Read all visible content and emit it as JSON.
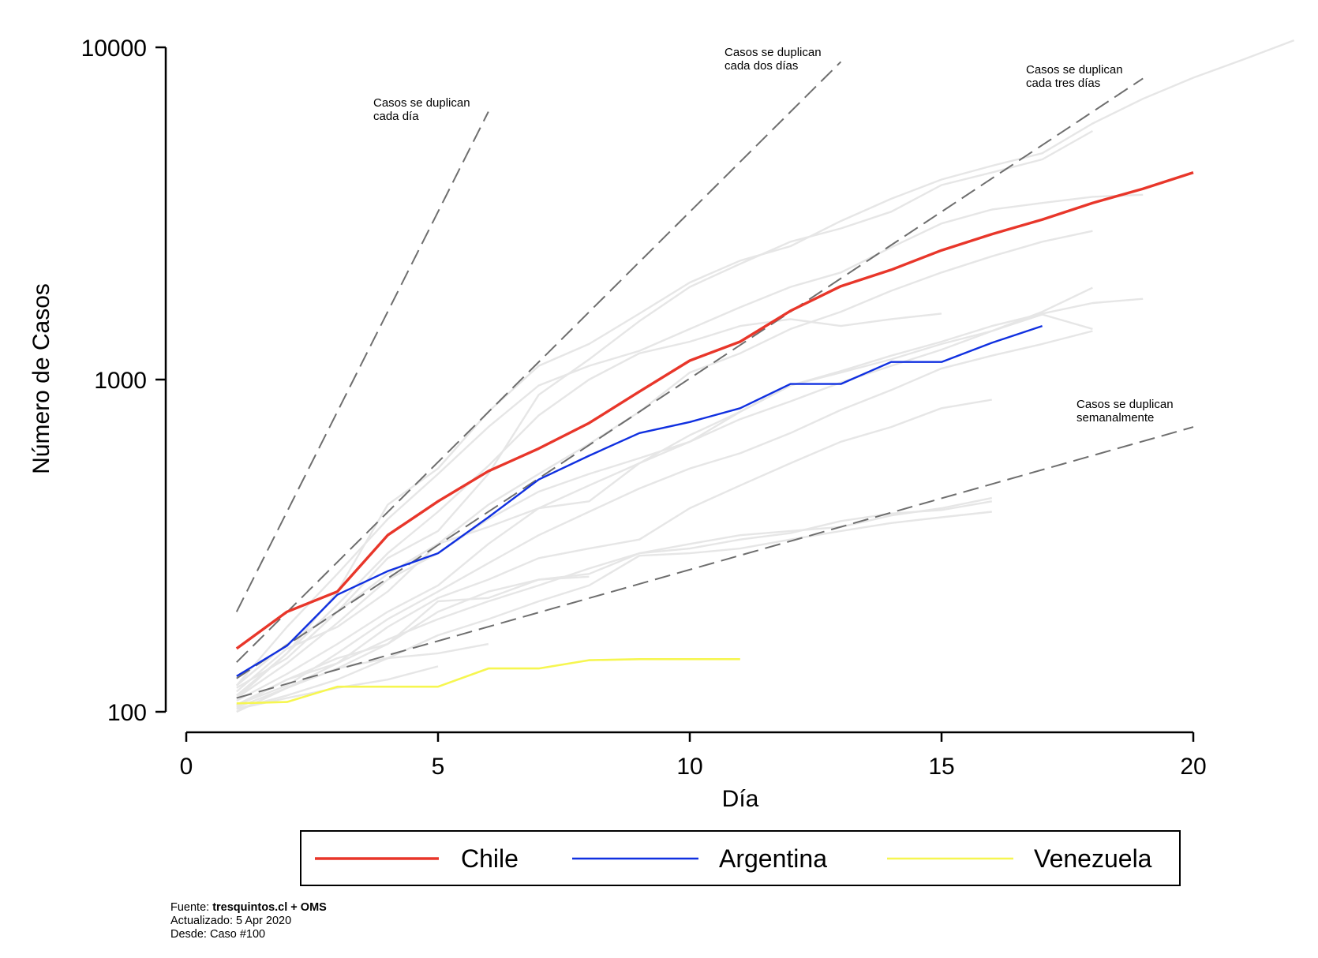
{
  "chart_data": {
    "type": "line",
    "xlabel": "Día",
    "ylabel": "Número de Casos",
    "y_scale": "log",
    "xlim": [
      0,
      20
    ],
    "ylim": [
      100,
      10000
    ],
    "x_ticks": [
      0,
      5,
      10,
      15,
      20
    ],
    "y_ticks": [
      100,
      1000,
      10000
    ],
    "series": [
      {
        "name": "Chile",
        "color": "#e8362a",
        "x": [
          1,
          2,
          3,
          4,
          5,
          6,
          7,
          8,
          9,
          10,
          11,
          12,
          13,
          14,
          15,
          16,
          17,
          18,
          19,
          20
        ],
        "values": [
          155,
          200,
          230,
          340,
          430,
          530,
          620,
          740,
          920,
          1140,
          1300,
          1610,
          1910,
          2140,
          2450,
          2740,
          3030,
          3400,
          3750,
          4200
        ]
      },
      {
        "name": "Argentina",
        "color": "#1030e0",
        "x": [
          1,
          2,
          3,
          4,
          5,
          6,
          7,
          8,
          9,
          10,
          11,
          12,
          13,
          14,
          15,
          16,
          17
        ],
        "values": [
          128,
          158,
          225,
          265,
          300,
          385,
          500,
          590,
          690,
          745,
          820,
          970,
          970,
          1130,
          1130,
          1290,
          1450
        ]
      },
      {
        "name": "Venezuela",
        "color": "#f6f650",
        "x": [
          1,
          2,
          3,
          4,
          5,
          6,
          7,
          8,
          9,
          10,
          11
        ],
        "values": [
          106,
          107,
          119,
          119,
          119,
          135,
          135,
          143,
          144,
          144,
          144
        ]
      }
    ],
    "background_series": [
      {
        "x": [
          1,
          2,
          3,
          4,
          5,
          6,
          7,
          8,
          9,
          10,
          11,
          12,
          13,
          14,
          15,
          16,
          17,
          18,
          19,
          20,
          21,
          22
        ],
        "values": [
          110,
          150,
          230,
          420,
          540,
          800,
          1100,
          1280,
          1580,
          1960,
          2280,
          2520,
          3000,
          3500,
          4000,
          4400,
          4800,
          5900,
          7000,
          8100,
          9200,
          10500
        ]
      },
      {
        "x": [
          1,
          2,
          3,
          4,
          5,
          6,
          7,
          8,
          9,
          10,
          11,
          12,
          13,
          14,
          15,
          16,
          17,
          18,
          19
        ],
        "values": [
          120,
          180,
          260,
          380,
          520,
          720,
          960,
          1100,
          1220,
          1420,
          1650,
          1900,
          2100,
          2500,
          2950,
          3250,
          3400,
          3550,
          3600
        ]
      },
      {
        "x": [
          1,
          2,
          3,
          4,
          5,
          6,
          7,
          8,
          9,
          10,
          11,
          12,
          13,
          14,
          15,
          16,
          17,
          18
        ],
        "values": [
          118,
          145,
          200,
          290,
          350,
          520,
          900,
          1150,
          1500,
          1900,
          2230,
          2600,
          2850,
          3200,
          3850,
          4200,
          4600,
          5600
        ]
      },
      {
        "x": [
          1,
          2,
          3,
          4,
          5,
          6,
          7,
          8,
          9,
          10,
          11,
          12,
          13,
          14,
          15
        ],
        "values": [
          112,
          150,
          210,
          300,
          400,
          550,
          780,
          1000,
          1200,
          1300,
          1450,
          1520,
          1450,
          1520,
          1580
        ]
      },
      {
        "x": [
          1,
          2,
          3,
          4,
          5,
          6,
          7,
          8,
          9,
          10,
          11,
          12,
          13,
          14,
          15,
          16,
          17,
          18
        ],
        "values": [
          120,
          160,
          200,
          260,
          320,
          420,
          520,
          640,
          800,
          1050,
          1200,
          1420,
          1600,
          1850,
          2100,
          2350,
          2600,
          2800
        ]
      },
      {
        "x": [
          1,
          2,
          3,
          4,
          5,
          6,
          7,
          8,
          9,
          10,
          11,
          12,
          13,
          14,
          15,
          16,
          17,
          18,
          19
        ],
        "values": [
          110,
          140,
          185,
          250,
          300,
          380,
          460,
          520,
          580,
          650,
          800,
          960,
          1060,
          1180,
          1300,
          1450,
          1580,
          1700,
          1750
        ]
      },
      {
        "x": [
          1,
          2,
          3,
          4,
          5,
          6,
          7,
          8,
          9,
          10,
          11,
          12,
          13,
          14,
          15,
          16,
          17,
          18
        ],
        "values": [
          115,
          155,
          180,
          230,
          320,
          360,
          410,
          430,
          560,
          680,
          800,
          960,
          1050,
          1150,
          1280,
          1400,
          1600,
          1890
        ]
      },
      {
        "x": [
          1,
          2,
          3,
          4,
          5,
          6,
          7,
          8,
          9,
          10,
          11,
          12,
          13,
          14,
          15,
          16,
          17,
          18
        ],
        "values": [
          108,
          130,
          160,
          200,
          240,
          320,
          410,
          480,
          560,
          650,
          760,
          860,
          980,
          1100,
          1230,
          1400,
          1570,
          1420
        ]
      },
      {
        "x": [
          1,
          2,
          3,
          4,
          5,
          6,
          7,
          8,
          9,
          10,
          11,
          12,
          13,
          14,
          15,
          16,
          17,
          18
        ],
        "values": [
          105,
          120,
          150,
          190,
          230,
          280,
          340,
          400,
          470,
          540,
          600,
          690,
          810,
          930,
          1080,
          1180,
          1280,
          1400
        ]
      },
      {
        "x": [
          1,
          2,
          3,
          4,
          5,
          6,
          7,
          8,
          9,
          10,
          11,
          12,
          13,
          14,
          15,
          16
        ],
        "values": [
          104,
          125,
          140,
          180,
          220,
          250,
          290,
          310,
          330,
          410,
          480,
          560,
          650,
          720,
          820,
          870
        ]
      },
      {
        "x": [
          1,
          2,
          3,
          4,
          5,
          6,
          7,
          8,
          9,
          10,
          11,
          12,
          13,
          14,
          15,
          16
        ],
        "values": [
          103,
          118,
          140,
          165,
          190,
          215,
          240,
          270,
          300,
          320,
          340,
          350,
          360,
          390,
          410,
          440
        ]
      },
      {
        "x": [
          1,
          2,
          3,
          4,
          5,
          6,
          7,
          8,
          9,
          10,
          11,
          12,
          13,
          14,
          15,
          16
        ],
        "values": [
          102,
          112,
          125,
          145,
          170,
          190,
          215,
          240,
          295,
          300,
          310,
          330,
          350,
          370,
          385,
          400
        ]
      },
      {
        "x": [
          1,
          2,
          3,
          4,
          5,
          6,
          7,
          8
        ],
        "values": [
          105,
          125,
          145,
          160,
          215,
          220,
          250,
          255
        ]
      },
      {
        "x": [
          1,
          2,
          3,
          4,
          5,
          6,
          7,
          8,
          9,
          10,
          11,
          12,
          13,
          14,
          15,
          16
        ],
        "values": [
          100,
          118,
          135,
          160,
          200,
          230,
          250,
          260,
          300,
          310,
          330,
          345,
          375,
          395,
          405,
          430
        ]
      },
      {
        "x": [
          1,
          2,
          3,
          4,
          5,
          6
        ],
        "values": [
          100,
          118,
          135,
          145,
          150,
          160
        ]
      },
      {
        "x": [
          1,
          2,
          3,
          4,
          5
        ],
        "values": [
          102,
          110,
          118,
          125,
          137
        ]
      }
    ],
    "reference_lines": [
      {
        "name": "Casos se duplican cada día",
        "x": [
          1,
          6
        ],
        "values": [
          200,
          6400
        ]
      },
      {
        "name": "Casos se duplican cada dos días",
        "x": [
          1,
          13
        ],
        "values": [
          141,
          9050
        ]
      },
      {
        "name": "Casos se duplican cada tres días",
        "x": [
          1,
          19
        ],
        "values": [
          126,
          8060
        ]
      },
      {
        "name": "Casos se duplican semanalmente",
        "x": [
          1,
          20
        ],
        "values": [
          110,
          720
        ]
      }
    ],
    "annotations": [
      {
        "lines": [
          "Casos se duplican",
          "cada día"
        ]
      },
      {
        "lines": [
          "Casos se duplican",
          "cada dos días"
        ]
      },
      {
        "lines": [
          "Casos se duplican",
          "cada tres días"
        ]
      },
      {
        "lines": [
          "Casos se duplican",
          "semanalmente"
        ]
      }
    ],
    "legend": {
      "position": "bottom",
      "entries": [
        "Chile",
        "Argentina",
        "Venezuela"
      ]
    }
  },
  "footer": {
    "source_label": "Fuente: ",
    "source_bold": "tresquintos.cl + OMS",
    "updated": "Actualizado: 5 Apr 2020",
    "since": "Desde: Caso #100"
  }
}
